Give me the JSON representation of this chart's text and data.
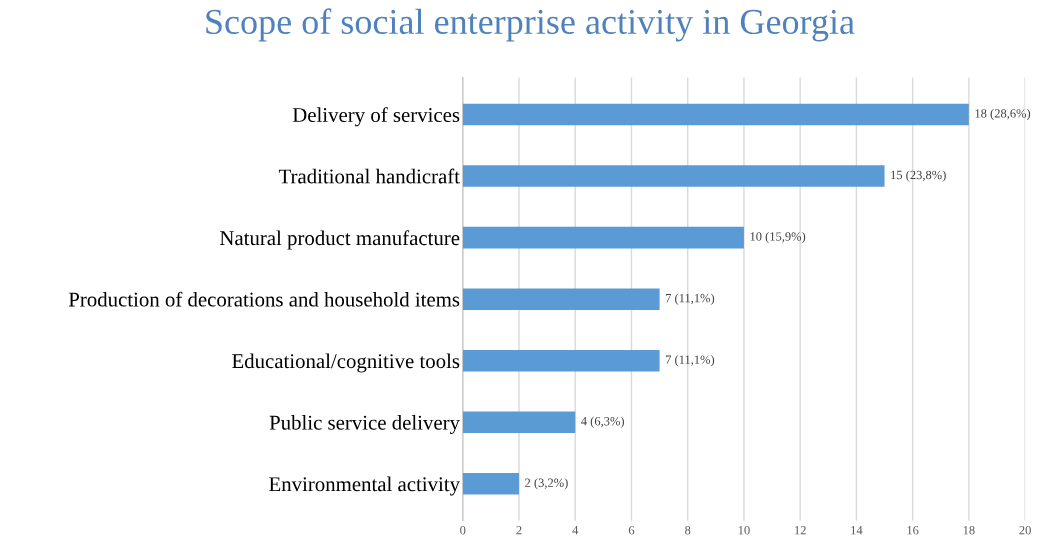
{
  "chart_data": {
    "type": "bar",
    "orientation": "horizontal",
    "title": "Scope of social enterprise activity in Georgia",
    "categories": [
      "Delivery of services",
      "Traditional handicraft",
      "Natural product manufacture",
      "Production of decorations and household items",
      "Educational/cognitive tools",
      "Public service delivery",
      "Environmental activity"
    ],
    "values": [
      18,
      15,
      10,
      7,
      7,
      4,
      2
    ],
    "value_labels": [
      "18 (28,6%)",
      "15 (23,8%)",
      "10 (15,9%)",
      "7 (11,1%)",
      "7 (11,1%)",
      "4 (6,3%)",
      "2 (3,2%)"
    ],
    "color": "#5b9bd5",
    "xlim": [
      0,
      20
    ],
    "xticks": [
      0,
      2,
      4,
      6,
      8,
      10,
      12,
      14,
      16,
      18,
      20
    ],
    "grid": "x"
  }
}
